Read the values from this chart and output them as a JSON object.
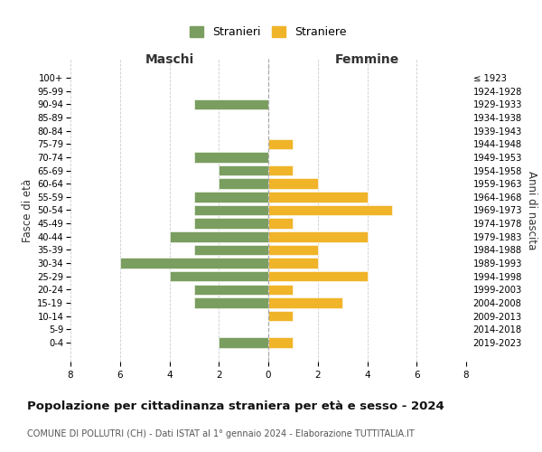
{
  "age_groups": [
    "100+",
    "95-99",
    "90-94",
    "85-89",
    "80-84",
    "75-79",
    "70-74",
    "65-69",
    "60-64",
    "55-59",
    "50-54",
    "45-49",
    "40-44",
    "35-39",
    "30-34",
    "25-29",
    "20-24",
    "15-19",
    "10-14",
    "5-9",
    "0-4"
  ],
  "birth_years": [
    "≤ 1923",
    "1924-1928",
    "1929-1933",
    "1934-1938",
    "1939-1943",
    "1944-1948",
    "1949-1953",
    "1954-1958",
    "1959-1963",
    "1964-1968",
    "1969-1973",
    "1974-1978",
    "1979-1983",
    "1984-1988",
    "1989-1993",
    "1994-1998",
    "1999-2003",
    "2004-2008",
    "2009-2013",
    "2014-2018",
    "2019-2023"
  ],
  "maschi": [
    0,
    0,
    3,
    0,
    0,
    0,
    3,
    2,
    2,
    3,
    3,
    3,
    4,
    3,
    6,
    4,
    3,
    3,
    0,
    0,
    2
  ],
  "femmine": [
    0,
    0,
    0,
    0,
    0,
    1,
    0,
    1,
    2,
    4,
    5,
    1,
    4,
    2,
    2,
    4,
    1,
    3,
    1,
    0,
    1
  ],
  "color_maschi": "#7a9e5f",
  "color_femmine": "#f0b429",
  "title": "Popolazione per cittadinanza straniera per età e sesso - 2024",
  "subtitle": "COMUNE DI POLLUTRI (CH) - Dati ISTAT al 1° gennaio 2024 - Elaborazione TUTTITALIA.IT",
  "xlabel_left": "Maschi",
  "xlabel_right": "Femmine",
  "ylabel_left": "Fasce di età",
  "ylabel_right": "Anni di nascita",
  "legend_maschi": "Stranieri",
  "legend_femmine": "Straniere",
  "xlim": 8,
  "background_color": "#ffffff",
  "grid_color": "#cccccc"
}
